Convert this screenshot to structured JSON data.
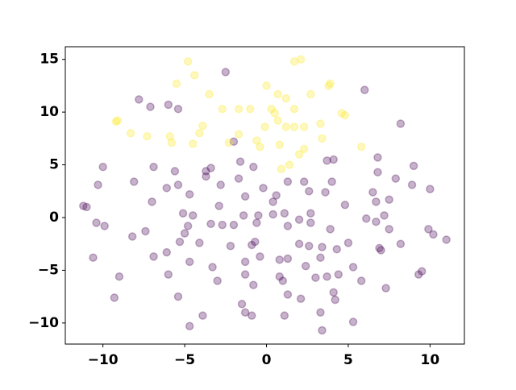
{
  "chart_data": {
    "type": "scatter",
    "alpha": 0.3,
    "xlim": [
      -12.3,
      12.1
    ],
    "ylim": [
      -12,
      16.2
    ],
    "xticks": [
      {
        "value": -10,
        "label": "−10"
      },
      {
        "value": -5,
        "label": "−5"
      },
      0,
      5,
      10
    ],
    "yticks": [
      {
        "value": -10,
        "label": "−10"
      },
      {
        "value": -5,
        "label": "−5"
      },
      0,
      5,
      10,
      15
    ],
    "series": [
      {
        "color": "#440154",
        "x": [
          -2.5,
          6.0,
          -7.8,
          -7.1,
          -6.0,
          -5.4,
          -10.0,
          -10.3,
          -8.1,
          -6.9,
          -5.6,
          -5.4,
          -6.1,
          -3.7,
          -3.4,
          -3.7,
          -2.0,
          -1.6,
          -1.7,
          -0.8,
          -2.8,
          -1.3,
          -0.2,
          0.6,
          1.3,
          2.3,
          2.6,
          3.7,
          4.1,
          4.0,
          3.6,
          4.8,
          6.5,
          6.7,
          6.8,
          6.8,
          7.5,
          7.9,
          8.9,
          9.0,
          10.0,
          8.2,
          -11.2,
          -11.0,
          -10.4,
          -9.9,
          -10.6,
          -9.0,
          -9.3,
          -8.2,
          -7.0,
          -7.4,
          -6.9,
          -6.0,
          -6.1,
          -5.1,
          -5.0,
          -4.5,
          -4.7,
          -4.8,
          -4.1,
          -5.3,
          -4.7,
          -5.4,
          -4.7,
          -3.9,
          -3.3,
          -3.0,
          -3.4,
          -2.9,
          -2.7,
          -2.2,
          -2.0,
          -1.4,
          -0.7,
          -0.9,
          -0.5,
          -0.6,
          -0.4,
          -1.3,
          -1.3,
          -1.5,
          -0.8,
          -1.3,
          -0.9,
          0.4,
          0.4,
          1.1,
          1.3,
          2.0,
          2.0,
          2.7,
          2.7,
          0.8,
          1.3,
          0.8,
          1.0,
          1.3,
          2.1,
          1.1,
          2.4,
          2.6,
          3.0,
          3.3,
          3.4,
          3.3,
          3.4,
          3.7,
          4.1,
          4.2,
          3.9,
          4.3,
          5.0,
          4.4,
          5.3,
          5.8,
          5.3,
          6.1,
          6.7,
          7.2,
          7.0,
          6.9,
          7.5,
          8.2,
          9.5,
          9.3,
          9.9,
          10.2,
          11.0,
          7.3
        ],
        "y": [
          13.8,
          12.1,
          11.2,
          10.5,
          10.7,
          10.3,
          4.8,
          3.1,
          3.4,
          4.8,
          4.4,
          3.1,
          2.8,
          4.4,
          4.7,
          3.9,
          7.2,
          5.3,
          3.7,
          4.8,
          3.1,
          2.0,
          2.8,
          2.1,
          3.4,
          3.4,
          2.5,
          5.4,
          5.5,
          3.4,
          2.4,
          1.2,
          2.4,
          1.5,
          5.7,
          4.3,
          1.7,
          3.7,
          3.1,
          4.9,
          2.7,
          8.9,
          1.1,
          1.0,
          -0.5,
          -0.8,
          -3.8,
          -5.6,
          -7.6,
          -1.8,
          1.5,
          -1.3,
          -3.7,
          -5.4,
          -3.3,
          0.4,
          -1.5,
          0.2,
          2.2,
          -0.8,
          -2.4,
          -2.3,
          -4.2,
          -7.5,
          -10.3,
          -9.3,
          -4.7,
          -6.0,
          -0.6,
          1.1,
          -0.7,
          -2.7,
          -0.7,
          0.2,
          -2.3,
          -2.6,
          0.2,
          -0.5,
          -3.7,
          -4.2,
          -5.4,
          -8.2,
          -6.4,
          -9.0,
          -9.3,
          1.5,
          0.3,
          0.4,
          -0.8,
          -2.5,
          -0.2,
          0.4,
          -0.5,
          -4.0,
          -3.9,
          -5.6,
          -6.0,
          -7.3,
          -7.7,
          -9.3,
          -4.6,
          -2.7,
          -5.7,
          -3.8,
          -2.8,
          -9.0,
          -10.7,
          -5.6,
          -7.1,
          -7.8,
          -1.1,
          -3.0,
          -2.4,
          -5.4,
          -4.7,
          -6.0,
          -9.9,
          -0.1,
          -0.4,
          0.2,
          -3.1,
          -2.9,
          -1.1,
          -2.5,
          -5.1,
          -5.4,
          -1.1,
          -1.6,
          -2.1,
          -6.7
        ]
      },
      {
        "color": "#fde725",
        "x": [
          -4.8,
          -5.5,
          -4.4,
          -3.5,
          1.7,
          2.1,
          0.0,
          0.7,
          1.2,
          2.7,
          3.8,
          3.9,
          -2.7,
          -1.7,
          -1.0,
          0.3,
          0.5,
          0.7,
          1.7,
          4.6,
          4.8,
          -9.1,
          -9.2,
          -3.9,
          -7.3,
          -8.3,
          -5.9,
          -5.8,
          -4.1,
          -4.5,
          -1.7,
          -2.3,
          -0.1,
          1.2,
          1.7,
          2.3,
          3.3,
          -0.6,
          -0.4,
          0.8,
          2.3,
          2.0,
          3.4,
          5.8,
          1.4,
          0.9
        ],
        "y": [
          14.8,
          12.7,
          13.5,
          11.7,
          14.8,
          15.0,
          12.5,
          11.7,
          11.3,
          11.7,
          12.5,
          12.7,
          10.3,
          10.3,
          10.3,
          10.3,
          9.9,
          9.2,
          10.3,
          9.9,
          9.7,
          9.2,
          9.1,
          8.7,
          7.7,
          8.0,
          7.7,
          7.1,
          8.0,
          7.0,
          7.9,
          7.1,
          8.6,
          8.6,
          8.6,
          8.6,
          8.9,
          7.3,
          6.7,
          6.9,
          6.5,
          6.0,
          7.5,
          6.7,
          5.0,
          4.6
        ]
      }
    ]
  }
}
